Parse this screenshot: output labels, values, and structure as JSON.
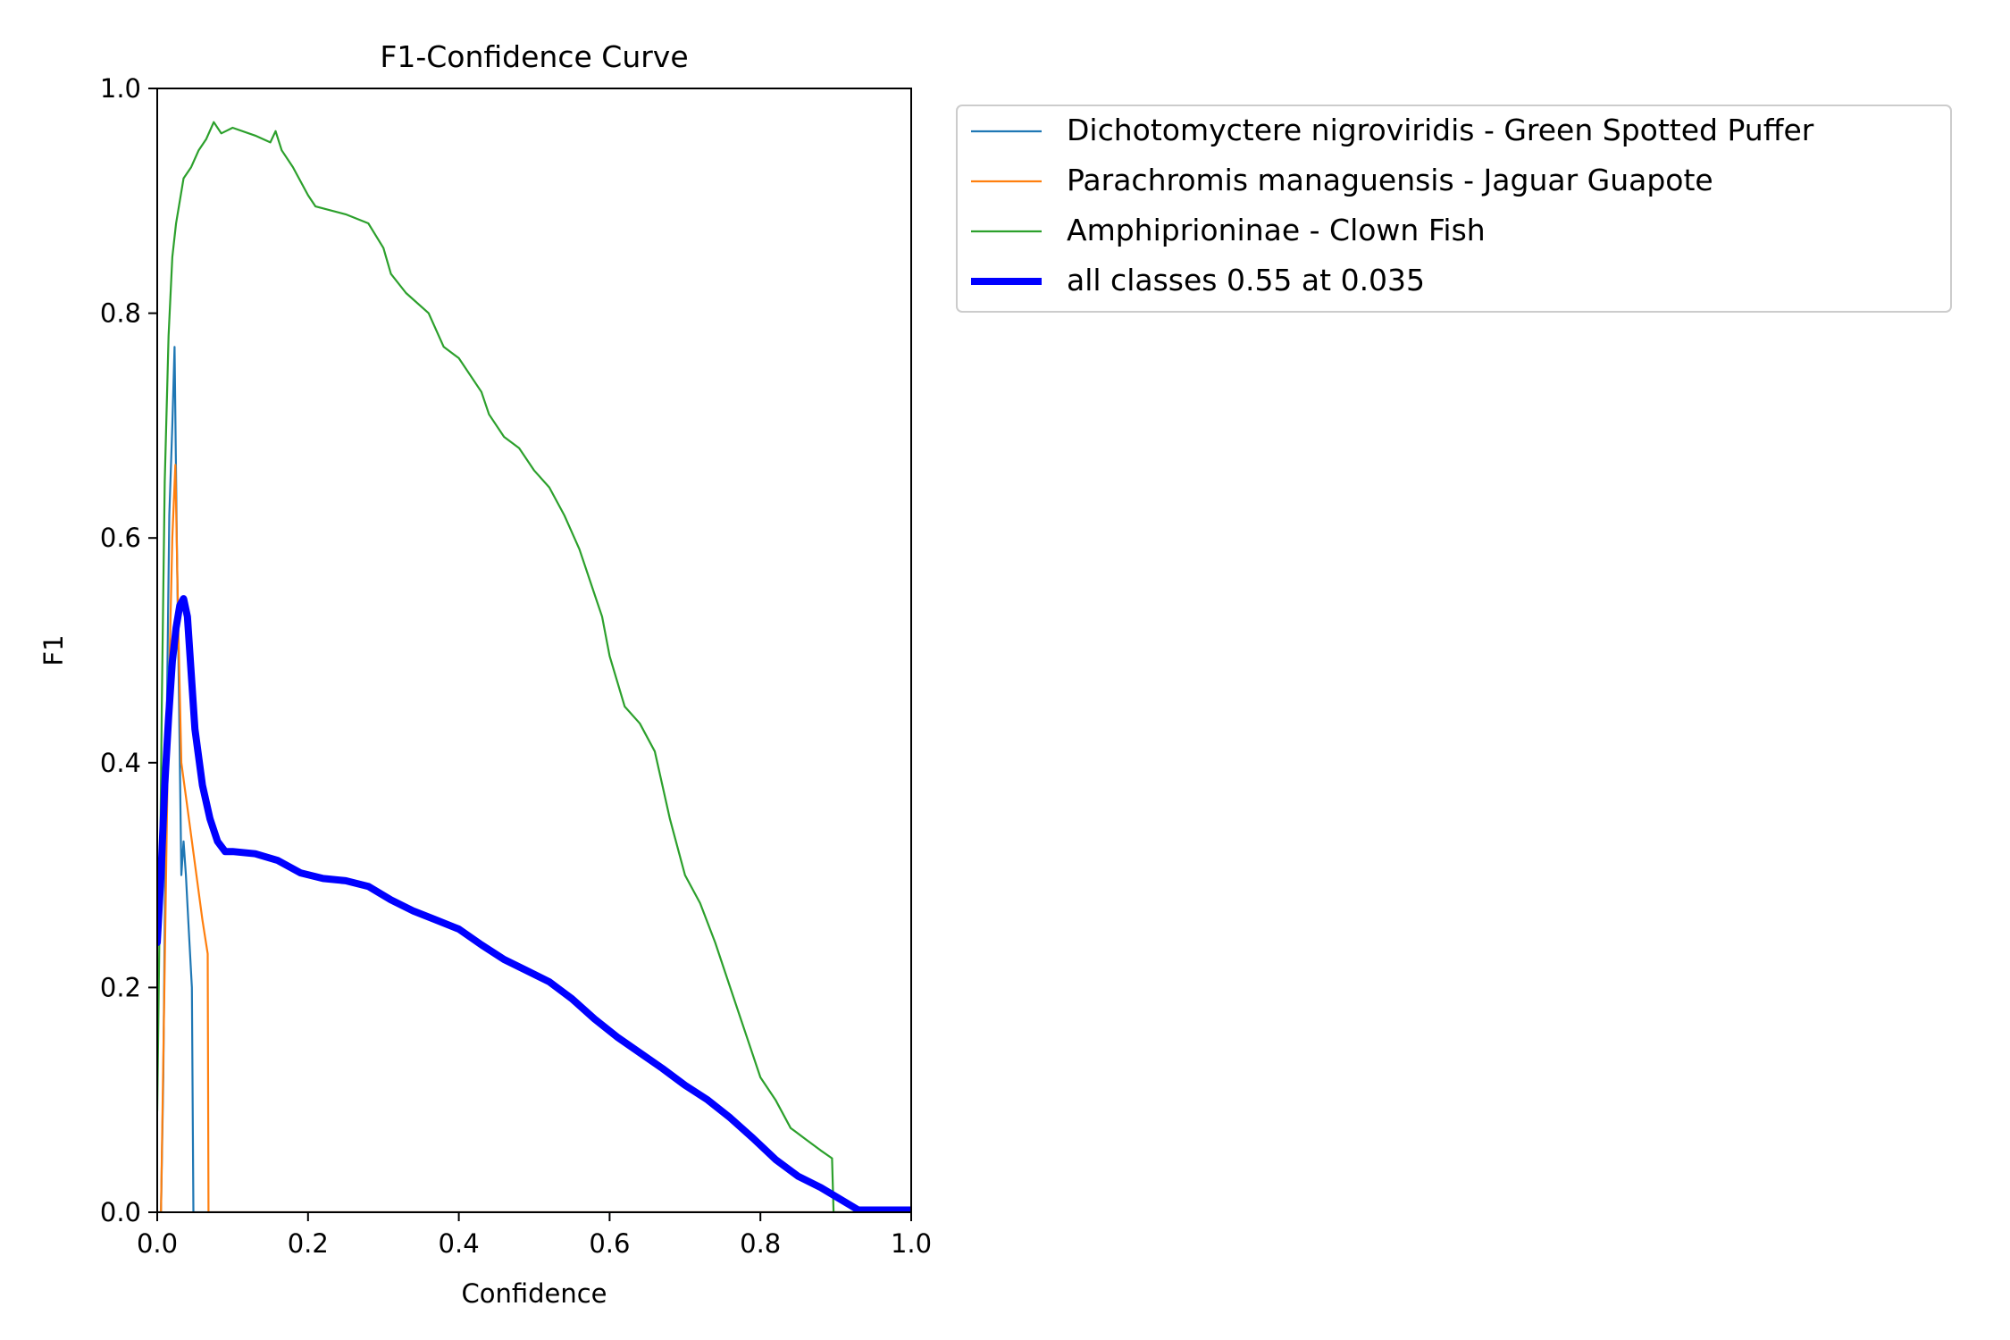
{
  "chart_data": {
    "type": "line",
    "title": "F1-Confidence Curve",
    "xlabel": "Confidence",
    "ylabel": "F1",
    "xlim": [
      0,
      1
    ],
    "ylim": [
      0,
      1
    ],
    "grid": false,
    "legend_position": "outside-top-right",
    "x_ticks": [
      "0.0",
      "0.2",
      "0.4",
      "0.6",
      "0.8",
      "1.0"
    ],
    "y_ticks": [
      "0.0",
      "0.2",
      "0.4",
      "0.6",
      "0.8",
      "1.0"
    ],
    "series": [
      {
        "name": "Dichotomyctere nigroviridis - Green Spotted Puffer",
        "color": "#1f77b4",
        "line": "thin",
        "points": [
          [
            0,
            0
          ],
          [
            0.005,
            0
          ],
          [
            0.008,
            0.12
          ],
          [
            0.012,
            0.4
          ],
          [
            0.016,
            0.62
          ],
          [
            0.02,
            0.7
          ],
          [
            0.023,
            0.77
          ],
          [
            0.026,
            0.6
          ],
          [
            0.029,
            0.45
          ],
          [
            0.032,
            0.3
          ],
          [
            0.035,
            0.33
          ],
          [
            0.038,
            0.3
          ],
          [
            0.042,
            0.25
          ],
          [
            0.046,
            0.2
          ],
          [
            0.048,
            0
          ],
          [
            1.0,
            0
          ]
        ]
      },
      {
        "name": "Parachromis managuensis - Jaguar Guapote",
        "color": "#ff7f0e",
        "line": "thin",
        "points": [
          [
            0,
            0
          ],
          [
            0.005,
            0
          ],
          [
            0.01,
            0.22
          ],
          [
            0.015,
            0.45
          ],
          [
            0.02,
            0.6
          ],
          [
            0.024,
            0.665
          ],
          [
            0.028,
            0.52
          ],
          [
            0.032,
            0.4
          ],
          [
            0.04,
            0.36
          ],
          [
            0.05,
            0.31
          ],
          [
            0.06,
            0.26
          ],
          [
            0.067,
            0.23
          ],
          [
            0.068,
            0
          ],
          [
            1.0,
            0
          ]
        ]
      },
      {
        "name": "Amphiprioninae - Clown Fish",
        "color": "#2ca02c",
        "line": "thin",
        "points": [
          [
            0,
            0.09
          ],
          [
            0.003,
            0.25
          ],
          [
            0.006,
            0.45
          ],
          [
            0.01,
            0.65
          ],
          [
            0.015,
            0.78
          ],
          [
            0.02,
            0.85
          ],
          [
            0.025,
            0.88
          ],
          [
            0.03,
            0.9
          ],
          [
            0.035,
            0.92
          ],
          [
            0.045,
            0.93
          ],
          [
            0.055,
            0.945
          ],
          [
            0.065,
            0.955
          ],
          [
            0.075,
            0.97
          ],
          [
            0.085,
            0.96
          ],
          [
            0.1,
            0.965
          ],
          [
            0.13,
            0.958
          ],
          [
            0.15,
            0.952
          ],
          [
            0.157,
            0.962
          ],
          [
            0.165,
            0.945
          ],
          [
            0.18,
            0.93
          ],
          [
            0.2,
            0.905
          ],
          [
            0.21,
            0.895
          ],
          [
            0.25,
            0.888
          ],
          [
            0.28,
            0.88
          ],
          [
            0.3,
            0.858
          ],
          [
            0.31,
            0.835
          ],
          [
            0.33,
            0.818
          ],
          [
            0.36,
            0.8
          ],
          [
            0.38,
            0.77
          ],
          [
            0.4,
            0.76
          ],
          [
            0.43,
            0.73
          ],
          [
            0.44,
            0.71
          ],
          [
            0.46,
            0.69
          ],
          [
            0.48,
            0.68
          ],
          [
            0.5,
            0.66
          ],
          [
            0.52,
            0.645
          ],
          [
            0.54,
            0.62
          ],
          [
            0.56,
            0.59
          ],
          [
            0.58,
            0.55
          ],
          [
            0.59,
            0.53
          ],
          [
            0.6,
            0.495
          ],
          [
            0.62,
            0.45
          ],
          [
            0.64,
            0.435
          ],
          [
            0.66,
            0.41
          ],
          [
            0.68,
            0.35
          ],
          [
            0.7,
            0.3
          ],
          [
            0.72,
            0.275
          ],
          [
            0.74,
            0.24
          ],
          [
            0.76,
            0.2
          ],
          [
            0.78,
            0.16
          ],
          [
            0.8,
            0.12
          ],
          [
            0.82,
            0.1
          ],
          [
            0.84,
            0.075
          ],
          [
            0.86,
            0.065
          ],
          [
            0.88,
            0.055
          ],
          [
            0.895,
            0.048
          ],
          [
            0.897,
            0
          ],
          [
            1.0,
            0
          ]
        ]
      },
      {
        "name": "all classes 0.55 at 0.035",
        "color": "#0000ff",
        "line": "thick",
        "points": [
          [
            0,
            0.24
          ],
          [
            0.005,
            0.3
          ],
          [
            0.01,
            0.38
          ],
          [
            0.015,
            0.44
          ],
          [
            0.02,
            0.49
          ],
          [
            0.025,
            0.52
          ],
          [
            0.03,
            0.54
          ],
          [
            0.035,
            0.546
          ],
          [
            0.04,
            0.53
          ],
          [
            0.045,
            0.48
          ],
          [
            0.05,
            0.43
          ],
          [
            0.06,
            0.38
          ],
          [
            0.07,
            0.35
          ],
          [
            0.08,
            0.33
          ],
          [
            0.09,
            0.321
          ],
          [
            0.1,
            0.321
          ],
          [
            0.13,
            0.319
          ],
          [
            0.16,
            0.313
          ],
          [
            0.19,
            0.302
          ],
          [
            0.22,
            0.297
          ],
          [
            0.25,
            0.295
          ],
          [
            0.28,
            0.29
          ],
          [
            0.31,
            0.278
          ],
          [
            0.34,
            0.268
          ],
          [
            0.37,
            0.26
          ],
          [
            0.4,
            0.252
          ],
          [
            0.43,
            0.238
          ],
          [
            0.46,
            0.225
          ],
          [
            0.49,
            0.215
          ],
          [
            0.52,
            0.205
          ],
          [
            0.55,
            0.19
          ],
          [
            0.58,
            0.172
          ],
          [
            0.61,
            0.156
          ],
          [
            0.64,
            0.142
          ],
          [
            0.67,
            0.128
          ],
          [
            0.7,
            0.113
          ],
          [
            0.73,
            0.1
          ],
          [
            0.76,
            0.084
          ],
          [
            0.79,
            0.066
          ],
          [
            0.82,
            0.047
          ],
          [
            0.85,
            0.032
          ],
          [
            0.88,
            0.022
          ],
          [
            0.91,
            0.01
          ],
          [
            0.93,
            0.002
          ],
          [
            1.0,
            0.002
          ]
        ]
      }
    ]
  }
}
